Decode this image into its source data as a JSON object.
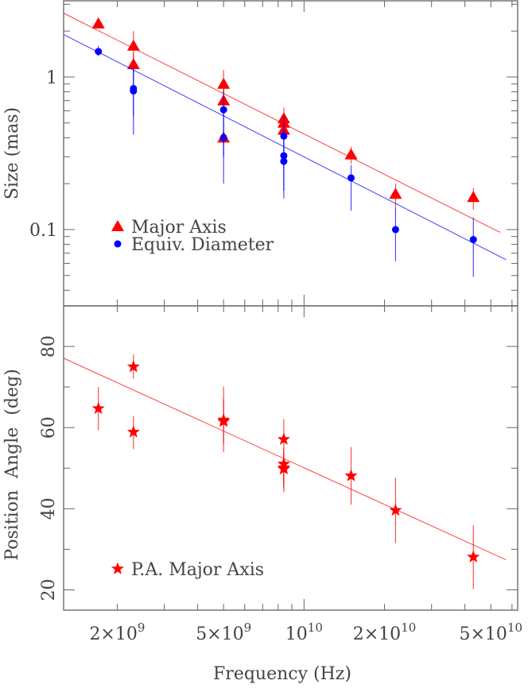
{
  "chart_data": [
    {
      "type": "scatter",
      "panel": "top",
      "xlabel": "",
      "ylabel": "Size (mas)",
      "xscale": "log",
      "yscale": "log",
      "xlim": [
        1260000000.0,
        63000000000.0
      ],
      "ylim": [
        0.0316,
        3.16
      ],
      "y_ticks": [
        {
          "value": 1,
          "label": "1"
        },
        {
          "value": 0.1,
          "label": "0.1"
        }
      ],
      "legend_placement": "bottom-left",
      "colors": {
        "major": "#ff0000",
        "equiv": "#0000ff"
      },
      "series": [
        {
          "name": "Major Axis",
          "marker": "triangle",
          "color": "#ff0000",
          "points": [
            {
              "x": 1700000000.0,
              "y": 2.24,
              "lo": 2.15,
              "hi": 2.34
            },
            {
              "x": 2300000000.0,
              "y": 1.6,
              "lo": 1.25,
              "hi": 2.0
            },
            {
              "x": 2300000000.0,
              "y": 1.21,
              "lo": 0.95,
              "hi": 1.45
            },
            {
              "x": 5000000000.0,
              "y": 0.9,
              "lo": 0.72,
              "hi": 1.11
            },
            {
              "x": 5000000000.0,
              "y": 0.7,
              "lo": 0.58,
              "hi": 0.85
            },
            {
              "x": 5000000000.0,
              "y": 0.4,
              "lo": 0.36,
              "hi": 0.44
            },
            {
              "x": 8400000000.0,
              "y": 0.535,
              "lo": 0.45,
              "hi": 0.63
            },
            {
              "x": 8400000000.0,
              "y": 0.5,
              "lo": 0.44,
              "hi": 0.57
            },
            {
              "x": 8400000000.0,
              "y": 0.45,
              "lo": 0.4,
              "hi": 0.51
            },
            {
              "x": 15000000000.0,
              "y": 0.31,
              "lo": 0.27,
              "hi": 0.35
            },
            {
              "x": 22000000000.0,
              "y": 0.171,
              "lo": 0.14,
              "hi": 0.2
            },
            {
              "x": 43000000000.0,
              "y": 0.163,
              "lo": 0.135,
              "hi": 0.187
            }
          ],
          "fit": {
            "x": [
              1260000000.0,
              54200000000.0
            ],
            "y": [
              2.62,
              0.0957
            ]
          }
        },
        {
          "name": "Equiv. Diameter",
          "marker": "circle",
          "color": "#0000ff",
          "points": [
            {
              "x": 1700000000.0,
              "y": 1.47,
              "lo": 1.37,
              "hi": 1.6
            },
            {
              "x": 2300000000.0,
              "y": 0.84,
              "lo": 0.55,
              "hi": 1.17
            },
            {
              "x": 2300000000.0,
              "y": 0.81,
              "lo": 0.42,
              "hi": 1.1
            },
            {
              "x": 5000000000.0,
              "y": 0.61,
              "lo": 0.3,
              "hi": 0.82
            },
            {
              "x": 5000000000.0,
              "y": 0.4,
              "lo": 0.2,
              "hi": 0.6
            },
            {
              "x": 8400000000.0,
              "y": 0.41,
              "lo": 0.25,
              "hi": 0.55
            },
            {
              "x": 8400000000.0,
              "y": 0.305,
              "lo": 0.16,
              "hi": 0.45
            },
            {
              "x": 8400000000.0,
              "y": 0.28,
              "lo": 0.18,
              "hi": 0.38
            },
            {
              "x": 15000000000.0,
              "y": 0.218,
              "lo": 0.133,
              "hi": 0.265
            },
            {
              "x": 22000000000.0,
              "y": 0.1,
              "lo": 0.062,
              "hi": 0.14
            },
            {
              "x": 43000000000.0,
              "y": 0.086,
              "lo": 0.049,
              "hi": 0.12
            }
          ],
          "fit": {
            "x": [
              1260000000.0,
              57000000000.0
            ],
            "y": [
              1.9,
              0.0634
            ]
          }
        }
      ]
    },
    {
      "type": "scatter",
      "panel": "bottom",
      "xlabel": "Frequency (Hz)",
      "ylabel": "Position Angle (deg)",
      "xscale": "log",
      "yscale": "linear",
      "xlim": [
        1260000000.0,
        63000000000.0
      ],
      "ylim": [
        15,
        90
      ],
      "x_ticks": [
        {
          "value": 2000000000.0,
          "base": "2×10",
          "exp": "9"
        },
        {
          "value": 5000000000.0,
          "base": "5×10",
          "exp": "9"
        },
        {
          "value": 10000000000.0,
          "base": "10",
          "exp": "10"
        },
        {
          "value": 20000000000.0,
          "base": "2×10",
          "exp": "10"
        },
        {
          "value": 50000000000.0,
          "base": "5×10",
          "exp": "10"
        }
      ],
      "y_ticks": [
        {
          "value": 80,
          "label": "80"
        },
        {
          "value": 60,
          "label": "60"
        },
        {
          "value": 40,
          "label": "40"
        },
        {
          "value": 20,
          "label": "20"
        }
      ],
      "legend_placement": "bottom-left",
      "series": [
        {
          "name": "P.A. Major Axis",
          "marker": "star",
          "color": "#ff0000",
          "points": [
            {
              "x": 1700000000.0,
              "y": 64.7,
              "lo": 59.4,
              "hi": 70.0
            },
            {
              "x": 2300000000.0,
              "y": 75.0,
              "lo": 72.0,
              "hi": 78.0
            },
            {
              "x": 2300000000.0,
              "y": 58.9,
              "lo": 54.7,
              "hi": 62.8
            },
            {
              "x": 5000000000.0,
              "y": 61.9,
              "lo": 54.0,
              "hi": 70.1
            },
            {
              "x": 5000000000.0,
              "y": 61.5,
              "lo": 56.0,
              "hi": 67.0
            },
            {
              "x": 8400000000.0,
              "y": 57.1,
              "lo": 46.0,
              "hi": 62.1
            },
            {
              "x": 8400000000.0,
              "y": 51.0,
              "lo": 45.5,
              "hi": 54.1
            },
            {
              "x": 8400000000.0,
              "y": 50.1,
              "lo": 44.1,
              "hi": 55.0
            },
            {
              "x": 8400000000.0,
              "y": 49.8,
              "lo": 45.0,
              "hi": 54.0
            },
            {
              "x": 15000000000.0,
              "y": 48.1,
              "lo": 41.0,
              "hi": 55.2
            },
            {
              "x": 22000000000.0,
              "y": 39.6,
              "lo": 31.6,
              "hi": 47.6
            },
            {
              "x": 43000000000.0,
              "y": 28.1,
              "lo": 20.2,
              "hi": 35.9
            }
          ],
          "fit": {
            "x": [
              1260000000.0,
              57000000000.0
            ],
            "y": [
              77.1,
              27.4
            ]
          }
        }
      ]
    }
  ]
}
